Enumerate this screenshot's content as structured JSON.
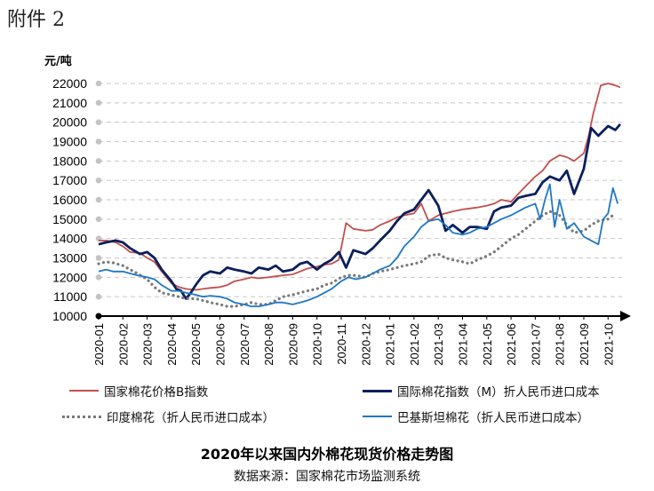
{
  "attachment_label": "附件 2",
  "chart_data": {
    "type": "line",
    "title": "2020年以来国内外棉花现货价格走势图",
    "subtitle": "数据来源：国家棉花市场监测系统",
    "ylabel": "元/吨",
    "xlabel": "",
    "ylim": [
      10000,
      22000
    ],
    "y_ticks": [
      "22000",
      "21000",
      "20000",
      "19000",
      "18000",
      "17000",
      "16000",
      "15000",
      "14000",
      "13000",
      "12000",
      "11000",
      "10000"
    ],
    "x_ticks": [
      "2020-01",
      "2020-02",
      "2020-03",
      "2020-04",
      "2020-05",
      "2020-06",
      "2020-07",
      "2020-08",
      "2020-09",
      "2020-10",
      "2020-11",
      "2020-12",
      "2021-01",
      "2021-02",
      "2021-03",
      "2021-04",
      "2021-05",
      "2021-06",
      "2021-07",
      "2021-08",
      "2021-09",
      "2021-10"
    ],
    "grid": true,
    "legend_position": "bottom",
    "series": [
      {
        "name": "国家棉花价格B指数",
        "color": "#c0504d",
        "style": "solid",
        "x": [
          0,
          0.3,
          0.7,
          1.0,
          1.3,
          1.7,
          2.0,
          2.3,
          2.6,
          3.0,
          3.3,
          3.6,
          4.0,
          4.3,
          4.6,
          5.0,
          5.3,
          5.6,
          6.0,
          6.3,
          6.6,
          7.0,
          7.3,
          7.6,
          8.0,
          8.3,
          8.6,
          9.0,
          9.3,
          9.6,
          9.9,
          10.2,
          10.5,
          11.0,
          11.3,
          11.6,
          12.0,
          12.3,
          12.6,
          13.0,
          13.3,
          13.6,
          14.0,
          14.3,
          14.6,
          15.0,
          15.3,
          15.6,
          16.0,
          16.3,
          16.6,
          17.0,
          17.3,
          17.6,
          18.0,
          18.3,
          18.6,
          19.0,
          19.3,
          19.6,
          20.0,
          20.2,
          20.4,
          20.7,
          21.0,
          21.3,
          21.5
        ],
        "values": [
          13900,
          13900,
          13800,
          13600,
          13300,
          13250,
          13000,
          12800,
          12300,
          11700,
          11500,
          11400,
          11350,
          11400,
          11450,
          11500,
          11600,
          11800,
          11900,
          12000,
          11950,
          12000,
          12050,
          12100,
          12150,
          12300,
          12450,
          12550,
          12650,
          12700,
          12900,
          14800,
          14500,
          14400,
          14450,
          14700,
          14900,
          15100,
          15200,
          15300,
          15800,
          14900,
          15200,
          15300,
          15400,
          15500,
          15550,
          15600,
          15700,
          15800,
          16000,
          15900,
          16300,
          16700,
          17200,
          17500,
          18000,
          18300,
          18200,
          18000,
          18400,
          19300,
          20500,
          21900,
          22000,
          21900,
          21800
        ]
      },
      {
        "name": "国际棉花指数（M）折人民币进口成本",
        "color": "#0b1f5c",
        "style": "solid",
        "x": [
          0,
          0.3,
          0.7,
          1.0,
          1.3,
          1.7,
          2.0,
          2.3,
          2.6,
          3.0,
          3.2,
          3.4,
          3.6,
          3.8,
          4.0,
          4.3,
          4.6,
          5.0,
          5.3,
          5.6,
          6.0,
          6.3,
          6.6,
          7.0,
          7.3,
          7.6,
          8.0,
          8.3,
          8.6,
          9.0,
          9.3,
          9.6,
          9.9,
          10.2,
          10.5,
          11.0,
          11.3,
          11.6,
          12.0,
          12.3,
          12.6,
          13.0,
          13.3,
          13.6,
          14.0,
          14.3,
          14.6,
          15.0,
          15.3,
          15.6,
          16.0,
          16.3,
          16.6,
          17.0,
          17.3,
          17.6,
          18.0,
          18.3,
          18.6,
          19.0,
          19.3,
          19.6,
          20.0,
          20.3,
          20.6,
          21.0,
          21.3,
          21.5
        ],
        "values": [
          13700,
          13800,
          13900,
          13800,
          13500,
          13200,
          13300,
          13000,
          12400,
          11800,
          11400,
          11300,
          10900,
          11200,
          11600,
          12100,
          12300,
          12200,
          12500,
          12400,
          12300,
          12200,
          12500,
          12400,
          12600,
          12300,
          12400,
          12700,
          12800,
          12400,
          12700,
          12900,
          13300,
          12500,
          13400,
          13200,
          13500,
          13900,
          14400,
          14900,
          15300,
          15500,
          16000,
          16500,
          15700,
          14400,
          14700,
          14300,
          14600,
          14600,
          14500,
          15400,
          15600,
          15700,
          16100,
          16200,
          16300,
          16900,
          17200,
          17000,
          17500,
          16300,
          17600,
          19700,
          19300,
          19800,
          19600,
          19900
        ]
      },
      {
        "name": "印度棉花（折人民币进口成本）",
        "color": "#7a7a7a",
        "style": "dotted",
        "x": [
          0,
          0.3,
          0.6,
          1.0,
          1.3,
          1.6,
          2.0,
          2.3,
          2.6,
          3.0,
          3.3,
          3.6,
          4.0,
          4.3,
          4.6,
          5.0,
          5.3,
          5.6,
          6.0,
          6.3,
          6.6,
          7.0,
          7.3,
          7.6,
          8.0,
          8.3,
          8.6,
          9.0,
          9.3,
          9.6,
          10.0,
          10.3,
          10.6,
          11.0,
          11.3,
          11.6,
          12.0,
          12.3,
          12.6,
          13.0,
          13.3,
          13.6,
          14.0,
          14.3,
          14.6,
          15.0,
          15.3,
          15.6,
          16.0,
          16.3,
          16.6,
          17.0,
          17.3,
          17.6,
          18.0,
          18.3,
          18.6,
          19.0,
          19.3,
          19.6,
          20.0,
          20.3,
          20.6,
          21.0,
          21.3
        ],
        "values": [
          12700,
          12800,
          12750,
          12600,
          12400,
          12200,
          11900,
          11500,
          11200,
          11100,
          11000,
          10900,
          10900,
          10800,
          10700,
          10600,
          10500,
          10500,
          10600,
          10700,
          10600,
          10600,
          10800,
          11000,
          11100,
          11200,
          11300,
          11400,
          11600,
          11700,
          12000,
          12100,
          12100,
          12000,
          12200,
          12300,
          12400,
          12500,
          12600,
          12700,
          12800,
          13100,
          13200,
          13000,
          12900,
          12800,
          12700,
          12900,
          13100,
          13300,
          13600,
          14000,
          14200,
          14500,
          14900,
          15200,
          15400,
          15200,
          14700,
          14300,
          14400,
          14700,
          14900,
          15000,
          15300
        ]
      },
      {
        "name": "巴基斯坦棉花（折人民币进口成本）",
        "color": "#1f77c4",
        "style": "solid",
        "x": [
          0,
          0.3,
          0.6,
          1.0,
          1.3,
          1.6,
          2.0,
          2.3,
          2.6,
          3.0,
          3.3,
          3.6,
          4.0,
          4.3,
          4.6,
          5.0,
          5.3,
          5.6,
          6.0,
          6.3,
          6.6,
          7.0,
          7.3,
          7.6,
          8.0,
          8.3,
          8.6,
          9.0,
          9.3,
          9.6,
          10.0,
          10.3,
          10.6,
          11.0,
          11.3,
          11.6,
          12.0,
          12.3,
          12.6,
          13.0,
          13.3,
          13.6,
          14.0,
          14.3,
          14.6,
          15.0,
          15.3,
          15.6,
          16.0,
          16.3,
          16.6,
          17.0,
          17.3,
          17.6,
          18.0,
          18.2,
          18.4,
          18.6,
          18.8,
          19.0,
          19.3,
          19.6,
          20.0,
          20.3,
          20.6,
          20.8,
          21.0,
          21.2,
          21.4
        ],
        "values": [
          12300,
          12400,
          12300,
          12300,
          12200,
          12100,
          12000,
          11900,
          11600,
          11300,
          11300,
          11200,
          11100,
          11000,
          11050,
          11000,
          10900,
          10700,
          10600,
          10500,
          10500,
          10600,
          10700,
          10700,
          10600,
          10700,
          10800,
          11000,
          11200,
          11400,
          11800,
          12000,
          11900,
          12000,
          12200,
          12400,
          12600,
          13000,
          13600,
          14100,
          14600,
          14900,
          15000,
          14700,
          14300,
          14200,
          14300,
          14500,
          14600,
          14800,
          15000,
          15200,
          15400,
          15600,
          15800,
          15000,
          16000,
          16800,
          14600,
          16000,
          14500,
          14800,
          14100,
          13900,
          13700,
          15000,
          15300,
          16600,
          15800
        ]
      }
    ]
  }
}
